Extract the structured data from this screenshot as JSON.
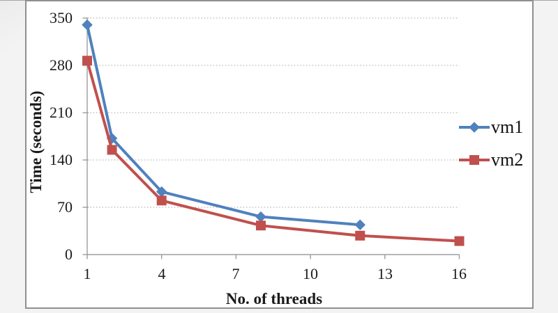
{
  "chart_data": {
    "type": "line",
    "title": "",
    "xlabel": "No. of threads",
    "ylabel": "Time (seconds)",
    "xlim": [
      1,
      16
    ],
    "ylim": [
      0,
      350
    ],
    "xticks": [
      1,
      4,
      7,
      10,
      13,
      16
    ],
    "yticks": [
      0,
      70,
      140,
      210,
      280,
      350
    ],
    "xtick_labels": [
      "1",
      "4",
      "7",
      "10",
      "13",
      "16"
    ],
    "ytick_labels_top_down": [
      "350",
      "280",
      "210",
      "140",
      "70",
      "0"
    ],
    "grid": "horizontal dotted gridlines",
    "legend_position": "right",
    "axis_color": "#9d9d9d",
    "gridline_color": "#a8a8a8",
    "series": [
      {
        "name": "vm1",
        "color": "#4F81BD",
        "marker": "diamond",
        "x": [
          1,
          2,
          4,
          8,
          12
        ],
        "y": [
          340,
          172,
          93,
          56,
          44
        ]
      },
      {
        "name": "vm2",
        "color": "#C0504D",
        "marker": "square",
        "x": [
          1,
          2,
          4,
          8,
          12,
          16
        ],
        "y": [
          287,
          155,
          80,
          43,
          28,
          20
        ]
      }
    ]
  }
}
